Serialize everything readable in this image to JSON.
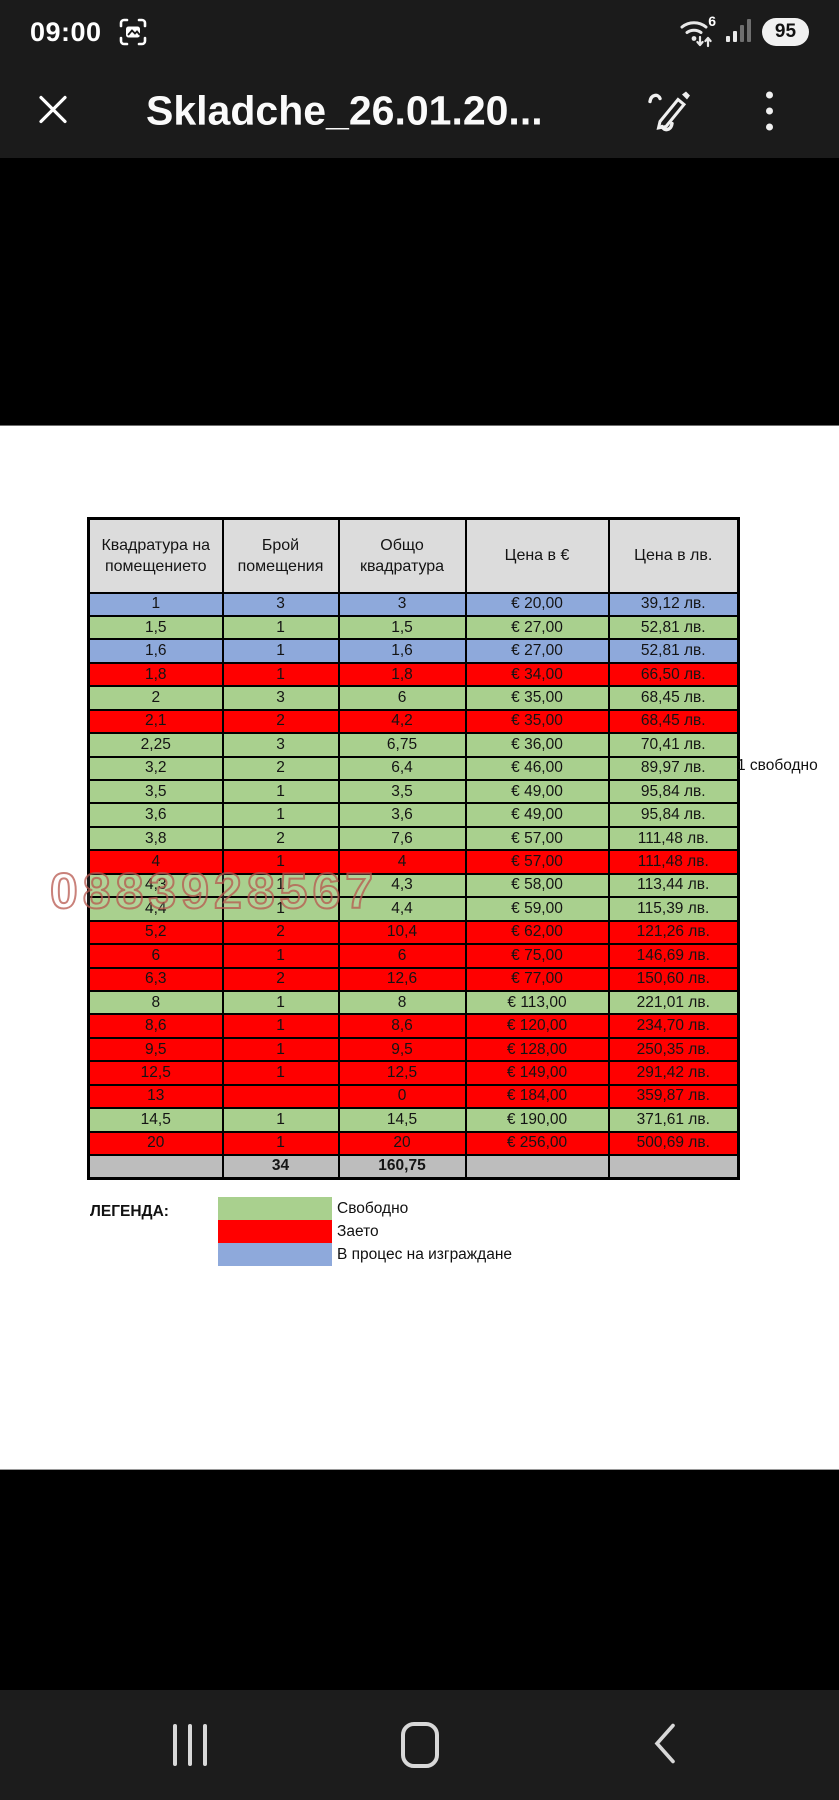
{
  "status_bar": {
    "time": "09:00",
    "wifi_gen": "6",
    "battery": "95"
  },
  "toolbar": {
    "title": "Skladche_26.01.20..."
  },
  "icons": {
    "screenshot": "bracket-photo",
    "wifi": "wifi-arcs-arrows",
    "signal": "bars-4",
    "close": "✕",
    "edit": "pencil-scribble",
    "menu": "⋮",
    "recents": "|||",
    "home": "rounded-square",
    "back": "‹"
  },
  "sheet": {
    "headers": [
      "Квадратура на помещението",
      "Брой помещения",
      "Общо квадратура",
      "Цена в €",
      "Цена в лв."
    ],
    "rows": [
      {
        "status": "construction",
        "cells": [
          "1",
          "3",
          "3",
          "€ 20,00",
          "39,12 лв."
        ]
      },
      {
        "status": "free",
        "cells": [
          "1,5",
          "1",
          "1,5",
          "€ 27,00",
          "52,81 лв."
        ]
      },
      {
        "status": "construction",
        "cells": [
          "1,6",
          "1",
          "1,6",
          "€ 27,00",
          "52,81 лв."
        ]
      },
      {
        "status": "occupied",
        "cells": [
          "1,8",
          "1",
          "1,8",
          "€ 34,00",
          "66,50 лв."
        ]
      },
      {
        "status": "free",
        "cells": [
          "2",
          "3",
          "6",
          "€ 35,00",
          "68,45 лв."
        ]
      },
      {
        "status": "occupied",
        "cells": [
          "2,1",
          "2",
          "4,2",
          "€ 35,00",
          "68,45 лв."
        ]
      },
      {
        "status": "free",
        "cells": [
          "2,25",
          "3",
          "6,75",
          "€ 36,00",
          "70,41 лв."
        ]
      },
      {
        "status": "free",
        "cells": [
          "3,2",
          "2",
          "6,4",
          "€ 46,00",
          "89,97 лв."
        ]
      },
      {
        "status": "free",
        "cells": [
          "3,5",
          "1",
          "3,5",
          "€ 49,00",
          "95,84 лв."
        ]
      },
      {
        "status": "free",
        "cells": [
          "3,6",
          "1",
          "3,6",
          "€ 49,00",
          "95,84 лв."
        ]
      },
      {
        "status": "free",
        "cells": [
          "3,8",
          "2",
          "7,6",
          "€ 57,00",
          "111,48 лв."
        ]
      },
      {
        "status": "occupied",
        "cells": [
          "4",
          "1",
          "4",
          "€ 57,00",
          "111,48 лв."
        ]
      },
      {
        "status": "free",
        "cells": [
          "4,3",
          "1",
          "4,3",
          "€ 58,00",
          "113,44 лв."
        ]
      },
      {
        "status": "free",
        "cells": [
          "4,4",
          "1",
          "4,4",
          "€ 59,00",
          "115,39 лв."
        ]
      },
      {
        "status": "occupied",
        "cells": [
          "5,2",
          "2",
          "10,4",
          "€ 62,00",
          "121,26 лв."
        ]
      },
      {
        "status": "occupied",
        "cells": [
          "6",
          "1",
          "6",
          "€ 75,00",
          "146,69 лв."
        ]
      },
      {
        "status": "occupied",
        "cells": [
          "6,3",
          "2",
          "12,6",
          "€ 77,00",
          "150,60 лв."
        ]
      },
      {
        "status": "free",
        "cells": [
          "8",
          "1",
          "8",
          "€ 113,00",
          "221,01 лв."
        ]
      },
      {
        "status": "occupied",
        "cells": [
          "8,6",
          "1",
          "8,6",
          "€ 120,00",
          "234,70 лв."
        ]
      },
      {
        "status": "occupied",
        "cells": [
          "9,5",
          "1",
          "9,5",
          "€ 128,00",
          "250,35 лв."
        ]
      },
      {
        "status": "occupied",
        "cells": [
          "12,5",
          "1",
          "12,5",
          "€ 149,00",
          "291,42 лв."
        ]
      },
      {
        "status": "occupied",
        "cells": [
          "13",
          "",
          "0",
          "€ 184,00",
          "359,87 лв."
        ]
      },
      {
        "status": "free",
        "cells": [
          "14,5",
          "1",
          "14,5",
          "€ 190,00",
          "371,61 лв."
        ]
      },
      {
        "status": "occupied",
        "cells": [
          "20",
          "1",
          "20",
          "€ 256,00",
          "500,69 лв."
        ]
      }
    ],
    "total_row": [
      "",
      "34",
      "160,75",
      "",
      ""
    ],
    "note": "1 свободно",
    "watermark": "0883928567",
    "status_colors": {
      "free": "#A9D08E",
      "occupied": "#FF0000",
      "construction": "#8EA9DB"
    }
  },
  "legend": {
    "title": "ЛЕГЕНДА:",
    "items": [
      {
        "status": "free",
        "label": "Свободно"
      },
      {
        "status": "occupied",
        "label": "Заето"
      },
      {
        "status": "construction",
        "label": "В процес на изграждане"
      }
    ]
  }
}
